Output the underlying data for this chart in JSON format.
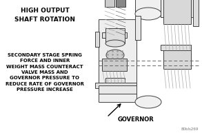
{
  "bg_color": "#ffffff",
  "text_color": "#000000",
  "top_label": "HIGH OUTPUT\nSHAFT ROTATION",
  "left_label": "SECONDARY STAGE SPRING\nFORCE AND INNER\nWEIGHT MASS COUNTERACT\nVALVE MASS AND\nGOVERNOR PRESSURE TO\nREDUCE RATE OF GOVERNOR\nPRESSURE INCREASE",
  "bottom_label": "GOVERNOR",
  "part_id": "80bls269",
  "fig_width": 2.93,
  "fig_height": 1.93,
  "dpi": 100
}
